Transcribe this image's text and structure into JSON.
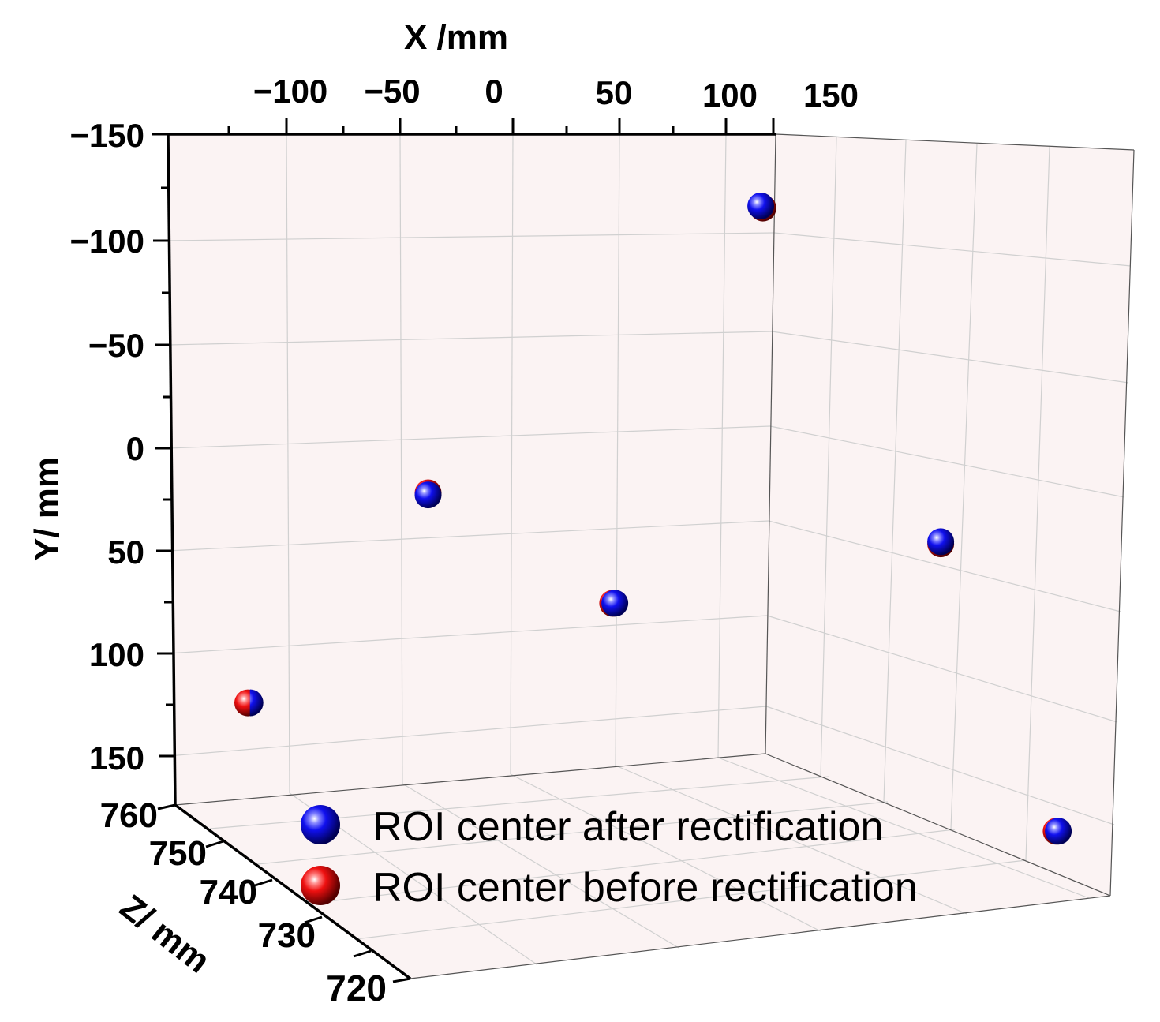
{
  "chart_data": {
    "type": "scatter3d",
    "title": "",
    "xlabel": "X /mm",
    "ylabel": "Y/ mm",
    "zlabel": "Z/ mm",
    "xticks": [
      "−100",
      "−50",
      "0",
      "50",
      "100",
      "150"
    ],
    "yticks": [
      "−150",
      "−100",
      "−50",
      "0",
      "50",
      "100",
      "150"
    ],
    "zticks": [
      "760",
      "750",
      "740",
      "730",
      "720"
    ],
    "colors": {
      "after": "#0000ee",
      "before": "#ee0000",
      "pane": "#fbf3f3",
      "grid": "#d0d0d0"
    },
    "series": [
      {
        "name": "ROI center after rectification",
        "color": "#0000ee",
        "points": [
          {
            "label": "top-right",
            "x": 110,
            "y": -118,
            "z": 758
          },
          {
            "label": "middle-left",
            "x": -45,
            "y": 17,
            "z": 758
          },
          {
            "label": "middle-right",
            "x": 150,
            "y": 12,
            "z": 742
          },
          {
            "label": "center",
            "x": 42,
            "y": 72,
            "z": 758
          },
          {
            "label": "bottom-left",
            "x": -128,
            "y": 115,
            "z": 758
          },
          {
            "label": "bottom-right",
            "x": 150,
            "y": 110,
            "z": 722
          }
        ]
      },
      {
        "name": "ROI center before rectification",
        "color": "#ee0000",
        "points": [
          {
            "label": "top-right",
            "x": 111,
            "y": -117,
            "z": 758
          },
          {
            "label": "middle-left",
            "x": -45,
            "y": 16,
            "z": 758
          },
          {
            "label": "middle-right",
            "x": 150,
            "y": 13,
            "z": 742
          },
          {
            "label": "center",
            "x": 41,
            "y": 72,
            "z": 758
          },
          {
            "label": "bottom-left",
            "x": -129,
            "y": 115,
            "z": 758
          },
          {
            "label": "bottom-right",
            "x": 149,
            "y": 110,
            "z": 722
          }
        ]
      }
    ]
  },
  "legend": {
    "after_label": "ROI center after rectification",
    "before_label": "ROI center before rectification"
  }
}
